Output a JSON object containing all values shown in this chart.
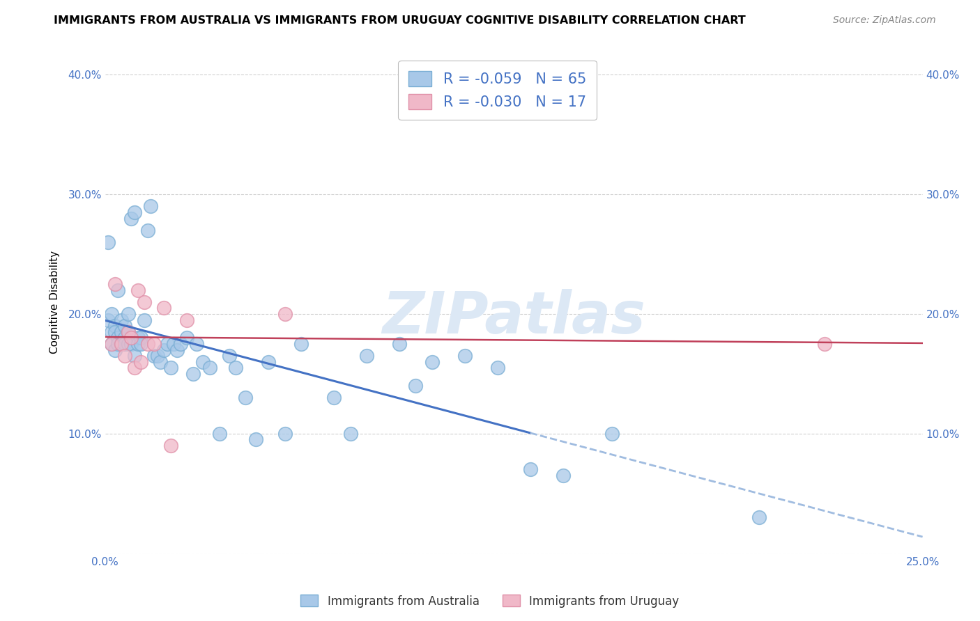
{
  "title": "IMMIGRANTS FROM AUSTRALIA VS IMMIGRANTS FROM URUGUAY COGNITIVE DISABILITY CORRELATION CHART",
  "source": "Source: ZipAtlas.com",
  "ylabel": "Cognitive Disability",
  "xlim": [
    0.0,
    0.25
  ],
  "ylim": [
    0.0,
    0.42
  ],
  "xticks": [
    0.0,
    0.05,
    0.1,
    0.15,
    0.2,
    0.25
  ],
  "yticks": [
    0.0,
    0.1,
    0.2,
    0.3,
    0.4
  ],
  "ytick_labels": [
    "",
    "10.0%",
    "20.0%",
    "30.0%",
    "40.0%"
  ],
  "xtick_labels": [
    "0.0%",
    "",
    "",
    "",
    "",
    "25.0%"
  ],
  "australia_color": "#a8c8e8",
  "australia_edge_color": "#7aaed4",
  "uruguay_color": "#f0b8c8",
  "uruguay_edge_color": "#e090a8",
  "australia_R": -0.059,
  "australia_N": 65,
  "uruguay_R": -0.03,
  "uruguay_N": 17,
  "australia_line_color": "#4472c4",
  "uruguay_line_color": "#c0405a",
  "watermark_text": "ZIPatlas",
  "watermark_color": "#dce8f5",
  "legend_label_australia": "Immigrants from Australia",
  "legend_label_uruguay": "Immigrants from Uruguay",
  "legend_R_color": "#c00000",
  "legend_N_color": "#4472c4",
  "australia_x": [
    0.001,
    0.001,
    0.002,
    0.002,
    0.002,
    0.003,
    0.003,
    0.003,
    0.004,
    0.004,
    0.004,
    0.005,
    0.005,
    0.005,
    0.006,
    0.006,
    0.006,
    0.007,
    0.007,
    0.007,
    0.008,
    0.008,
    0.009,
    0.009,
    0.01,
    0.01,
    0.011,
    0.011,
    0.012,
    0.013,
    0.014,
    0.015,
    0.016,
    0.017,
    0.018,
    0.019,
    0.02,
    0.021,
    0.022,
    0.023,
    0.025,
    0.027,
    0.028,
    0.03,
    0.032,
    0.035,
    0.038,
    0.04,
    0.043,
    0.046,
    0.05,
    0.055,
    0.06,
    0.07,
    0.075,
    0.08,
    0.09,
    0.095,
    0.1,
    0.11,
    0.12,
    0.13,
    0.14,
    0.155,
    0.2
  ],
  "australia_y": [
    0.26,
    0.195,
    0.185,
    0.2,
    0.175,
    0.19,
    0.185,
    0.17,
    0.18,
    0.175,
    0.22,
    0.195,
    0.185,
    0.175,
    0.18,
    0.19,
    0.175,
    0.2,
    0.175,
    0.185,
    0.28,
    0.175,
    0.285,
    0.165,
    0.18,
    0.175,
    0.18,
    0.175,
    0.195,
    0.27,
    0.29,
    0.165,
    0.165,
    0.16,
    0.17,
    0.175,
    0.155,
    0.175,
    0.17,
    0.175,
    0.18,
    0.15,
    0.175,
    0.16,
    0.155,
    0.1,
    0.165,
    0.155,
    0.13,
    0.095,
    0.16,
    0.1,
    0.175,
    0.13,
    0.1,
    0.165,
    0.175,
    0.14,
    0.16,
    0.165,
    0.155,
    0.07,
    0.065,
    0.1,
    0.03
  ],
  "uruguay_x": [
    0.002,
    0.003,
    0.005,
    0.006,
    0.007,
    0.008,
    0.009,
    0.01,
    0.011,
    0.012,
    0.013,
    0.015,
    0.018,
    0.02,
    0.025,
    0.055,
    0.22
  ],
  "uruguay_y": [
    0.175,
    0.225,
    0.175,
    0.165,
    0.185,
    0.18,
    0.155,
    0.22,
    0.16,
    0.21,
    0.175,
    0.175,
    0.205,
    0.09,
    0.195,
    0.2,
    0.175
  ]
}
